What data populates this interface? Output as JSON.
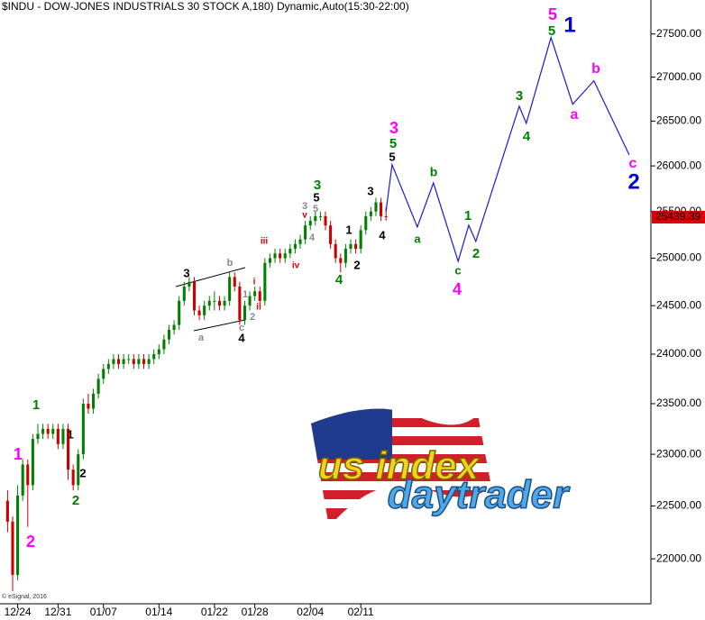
{
  "chart_data": {
    "type": "candlestick",
    "title": "$INDU - DOW-JONES INDUSTRIALS 30 STOCK A,180) Dynamic,Auto(15:30-22:00)",
    "footnote": "© eSignal, 2016",
    "log_scale": true,
    "xlim": [
      -1.5,
      127.5
    ],
    "ylim": [
      21600,
      27900
    ],
    "xticks": [
      {
        "value": 2,
        "label": "12/24"
      },
      {
        "value": 10,
        "label": "12/31"
      },
      {
        "value": 19,
        "label": "01/07"
      },
      {
        "value": 30,
        "label": "01/14"
      },
      {
        "value": 41,
        "label": "01/22"
      },
      {
        "value": 49,
        "label": "01/28"
      },
      {
        "value": 60,
        "label": "02/04"
      },
      {
        "value": 70,
        "label": "02/11"
      }
    ],
    "yticks": [
      {
        "value": 22000,
        "label": "22000.00"
      },
      {
        "value": 22500,
        "label": "22500.00"
      },
      {
        "value": 23000,
        "label": "23000.00"
      },
      {
        "value": 23500,
        "label": "23500.00"
      },
      {
        "value": 24000,
        "label": "24000.00"
      },
      {
        "value": 24500,
        "label": "24500.00"
      },
      {
        "value": 25000,
        "label": "25000.00"
      },
      {
        "value": 25500,
        "label": "25500.00"
      },
      {
        "value": 26000,
        "label": "26000.00"
      },
      {
        "value": 26500,
        "label": "26500.00"
      },
      {
        "value": 27000,
        "label": "27000.00"
      },
      {
        "value": 27500,
        "label": "27500.00"
      }
    ],
    "up_color": "#008000",
    "down_color": "#cc0000",
    "candles": [
      [
        22550,
        22650,
        22250,
        22350
      ],
      [
        22350,
        22400,
        21700,
        21850
      ],
      [
        21850,
        22700,
        21800,
        22600
      ],
      [
        22600,
        22950,
        22550,
        22900
      ],
      [
        22900,
        22950,
        22300,
        22700
      ],
      [
        22700,
        23200,
        22650,
        23150
      ],
      [
        23150,
        23300,
        23100,
        23200
      ],
      [
        23200,
        23300,
        23150,
        23250
      ],
      [
        23250,
        23300,
        23150,
        23200
      ],
      [
        23200,
        23300,
        23150,
        23250
      ],
      [
        23250,
        23300,
        23050,
        23100
      ],
      [
        23100,
        23300,
        23050,
        23250
      ],
      [
        23250,
        23300,
        22750,
        22850
      ],
      [
        22850,
        22900,
        22650,
        22700
      ],
      [
        22700,
        23050,
        22650,
        23000
      ],
      [
        23000,
        23550,
        22950,
        23500
      ],
      [
        23500,
        23600,
        23400,
        23450
      ],
      [
        23450,
        23650,
        23400,
        23600
      ],
      [
        23600,
        23800,
        23550,
        23750
      ],
      [
        23750,
        23900,
        23700,
        23850
      ],
      [
        23850,
        23950,
        23800,
        23900
      ],
      [
        23900,
        24000,
        23850,
        23950
      ],
      [
        23950,
        24000,
        23850,
        23900
      ],
      [
        23900,
        24000,
        23850,
        23950
      ],
      [
        23950,
        24000,
        23900,
        23950
      ],
      [
        23950,
        24000,
        23850,
        23900
      ],
      [
        23900,
        24000,
        23850,
        23950
      ],
      [
        23950,
        24000,
        23850,
        23900
      ],
      [
        23900,
        24000,
        23850,
        23950
      ],
      [
        23950,
        24050,
        23900,
        24000
      ],
      [
        24000,
        24100,
        23950,
        24050
      ],
      [
        24050,
        24200,
        24000,
        24150
      ],
      [
        24150,
        24300,
        24100,
        24250
      ],
      [
        24250,
        24350,
        24200,
        24300
      ],
      [
        24300,
        24600,
        24250,
        24550
      ],
      [
        24550,
        24750,
        24500,
        24700
      ],
      [
        24700,
        24800,
        24650,
        24750
      ],
      [
        24750,
        24800,
        24400,
        24450
      ],
      [
        24450,
        24500,
        24350,
        24400
      ],
      [
        24400,
        24550,
        24350,
        24500
      ],
      [
        24500,
        24600,
        24450,
        24550
      ],
      [
        24550,
        24650,
        24450,
        24550
      ],
      [
        24550,
        24600,
        24450,
        24500
      ],
      [
        24500,
        24600,
        24450,
        24550
      ],
      [
        24550,
        24850,
        24500,
        24800
      ],
      [
        24800,
        24850,
        24650,
        24700
      ],
      [
        24700,
        24750,
        24300,
        24350
      ],
      [
        24350,
        24550,
        24300,
        24500
      ],
      [
        24500,
        24650,
        24450,
        24600
      ],
      [
        24600,
        24700,
        24550,
        24650
      ],
      [
        24650,
        24700,
        24500,
        24550
      ],
      [
        24550,
        25000,
        24500,
        24950
      ],
      [
        24950,
        25050,
        24900,
        25000
      ],
      [
        25000,
        25100,
        24950,
        25050
      ],
      [
        25050,
        25100,
        24950,
        25000
      ],
      [
        25000,
        25100,
        24950,
        25050
      ],
      [
        25050,
        25150,
        25000,
        25100
      ],
      [
        25100,
        25200,
        25050,
        25150
      ],
      [
        25150,
        25250,
        25100,
        25200
      ],
      [
        25200,
        25400,
        25150,
        25350
      ],
      [
        25350,
        25450,
        25300,
        25400
      ],
      [
        25400,
        25500,
        25350,
        25450
      ],
      [
        25450,
        25500,
        25400,
        25450
      ],
      [
        25450,
        25500,
        25300,
        25350
      ],
      [
        25350,
        25400,
        25100,
        25150
      ],
      [
        25150,
        25200,
        24950,
        25000
      ],
      [
        25000,
        25050,
        24850,
        24950
      ],
      [
        24950,
        25150,
        24900,
        25100
      ],
      [
        25100,
        25200,
        25050,
        25150
      ],
      [
        25150,
        25200,
        25050,
        25100
      ],
      [
        25100,
        25350,
        25050,
        25300
      ],
      [
        25300,
        25500,
        25250,
        25450
      ],
      [
        25450,
        25550,
        25400,
        25500
      ],
      [
        25500,
        25650,
        25450,
        25600
      ],
      [
        25600,
        25650,
        25400,
        25450
      ],
      [
        25450,
        25550,
        25400,
        25439.39
      ]
    ],
    "last_price": 25439.39,
    "last_price_color": "#dd0000",
    "projection": {
      "color": "#1a1acc",
      "x": [
        75.0,
        76.2,
        81.2,
        84.4,
        89.3,
        91.4,
        92.8,
        101.4,
        102.8,
        107.7,
        112.0,
        116.2,
        123.2
      ],
      "values": [
        25500,
        26014,
        25334,
        25812,
        24967,
        25353,
        25178,
        26668,
        26475,
        27458,
        26690,
        26958,
        26122
      ]
    },
    "wave_labels": [
      {
        "text": "1",
        "color": "#ff00ff"
      },
      {
        "text": "2",
        "color": "#ff00ff"
      },
      {
        "text": "3",
        "color": "#ff00ff"
      },
      {
        "text": "4",
        "color": "#ff00ff"
      },
      {
        "text": "5",
        "color": "#ff00ff"
      },
      {
        "text": "a",
        "color": "#ff00ff"
      },
      {
        "text": "b",
        "color": "#ff00ff"
      },
      {
        "text": "c",
        "color": "#ff00ff"
      },
      {
        "text": "1",
        "color": "#0000dd"
      },
      {
        "text": "2",
        "color": "#0000dd"
      },
      {
        "text": "1",
        "color": "#008000"
      },
      {
        "text": "2",
        "color": "#008000"
      },
      {
        "text": "3",
        "color": "#008000"
      },
      {
        "text": "4",
        "color": "#008000"
      },
      {
        "text": "5",
        "color": "#008000"
      },
      {
        "text": "a",
        "color": "#008000"
      },
      {
        "text": "b",
        "color": "#008000"
      },
      {
        "text": "c",
        "color": "#008000"
      },
      {
        "text": "1",
        "color": "#008000"
      },
      {
        "text": "2",
        "color": "#008000"
      },
      {
        "text": "3",
        "color": "#008000"
      },
      {
        "text": "4",
        "color": "#008000"
      },
      {
        "text": "5",
        "color": "#008000"
      },
      {
        "text": "1",
        "color": "#000000"
      },
      {
        "text": "2",
        "color": "#000000"
      },
      {
        "text": "3",
        "color": "#000000"
      },
      {
        "text": "4",
        "color": "#000000"
      },
      {
        "text": "5",
        "color": "#000000"
      },
      {
        "text": "1",
        "color": "#000000"
      },
      {
        "text": "2",
        "color": "#000000"
      },
      {
        "text": "3",
        "color": "#000000"
      },
      {
        "text": "4",
        "color": "#000000"
      },
      {
        "text": "5",
        "color": "#000000"
      },
      {
        "text": "a",
        "color": "#888888"
      },
      {
        "text": "b",
        "color": "#888888"
      },
      {
        "text": "c",
        "color": "#888888"
      },
      {
        "text": "1",
        "color": "#888888"
      },
      {
        "text": "2",
        "color": "#888888"
      },
      {
        "text": "3",
        "color": "#888888"
      },
      {
        "text": "5",
        "color": "#888888"
      },
      {
        "text": "4",
        "color": "#888888"
      },
      {
        "text": "i",
        "color": "#dd0000"
      },
      {
        "text": "ii",
        "color": "#dd0000"
      },
      {
        "text": "iii",
        "color": "#dd0000"
      },
      {
        "text": "iv",
        "color": "#dd0000"
      },
      {
        "text": "v",
        "color": "#dd0000"
      }
    ],
    "logo": {
      "line1": "us index",
      "line2": "daytrader"
    }
  }
}
